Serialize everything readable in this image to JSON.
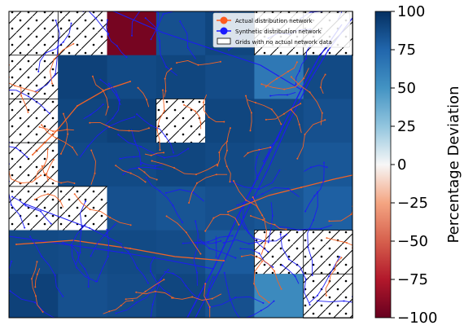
{
  "chart_data": {
    "type": "heatmap",
    "title": "",
    "colorbar": {
      "label": "Percentage Deviation",
      "range": [
        -100,
        100
      ],
      "ticks": [
        100,
        75,
        50,
        25,
        0,
        -25,
        -50,
        -75,
        -100
      ],
      "tick_labels": [
        "100",
        "75",
        "50",
        "25",
        "0",
        "−25",
        "−50",
        "−75",
        "−100"
      ],
      "colormap": "RdBu"
    },
    "grid": {
      "rows": 7,
      "cols": 7,
      "values": [
        [
          null,
          null,
          -95,
          85,
          90,
          null,
          null
        ],
        [
          null,
          92,
          88,
          90,
          87,
          65,
          88
        ],
        [
          null,
          90,
          92,
          null,
          90,
          88,
          85
        ],
        [
          null,
          88,
          88,
          90,
          88,
          85,
          82
        ],
        [
          null,
          null,
          85,
          83,
          85,
          83,
          78
        ],
        [
          88,
          87,
          88,
          87,
          80,
          null,
          null
        ],
        [
          92,
          85,
          87,
          90,
          85,
          55,
          null
        ]
      ],
      "hatch_style": {
        "0,0": "slash-dot",
        "0,1": "slash-dot",
        "0,5": "slash-dot",
        "0,6": "slash-dot",
        "1,0": "slash-dot",
        "2,0": "slash-dot",
        "2,3": "slash-dot",
        "3,0": "slash-dot",
        "4,0": "slash-dot",
        "4,1": "slash-dot",
        "5,5": "slash-dot",
        "5,6": "slash-dot",
        "6,6": "slash-dot"
      }
    },
    "legend": {
      "position": "top-right",
      "entries": [
        {
          "label": "Actual distribution network",
          "color": "#ff5a1f",
          "marker": "circle-line"
        },
        {
          "label": "Synthetic distribution network",
          "color": "#1a1aff",
          "marker": "circle-line"
        },
        {
          "label": "Grids with no actual network data",
          "color": "#ffffff",
          "marker": "box"
        }
      ]
    },
    "series_colors": {
      "actual": "#f26326",
      "synthetic": "#1c1cf2"
    }
  }
}
